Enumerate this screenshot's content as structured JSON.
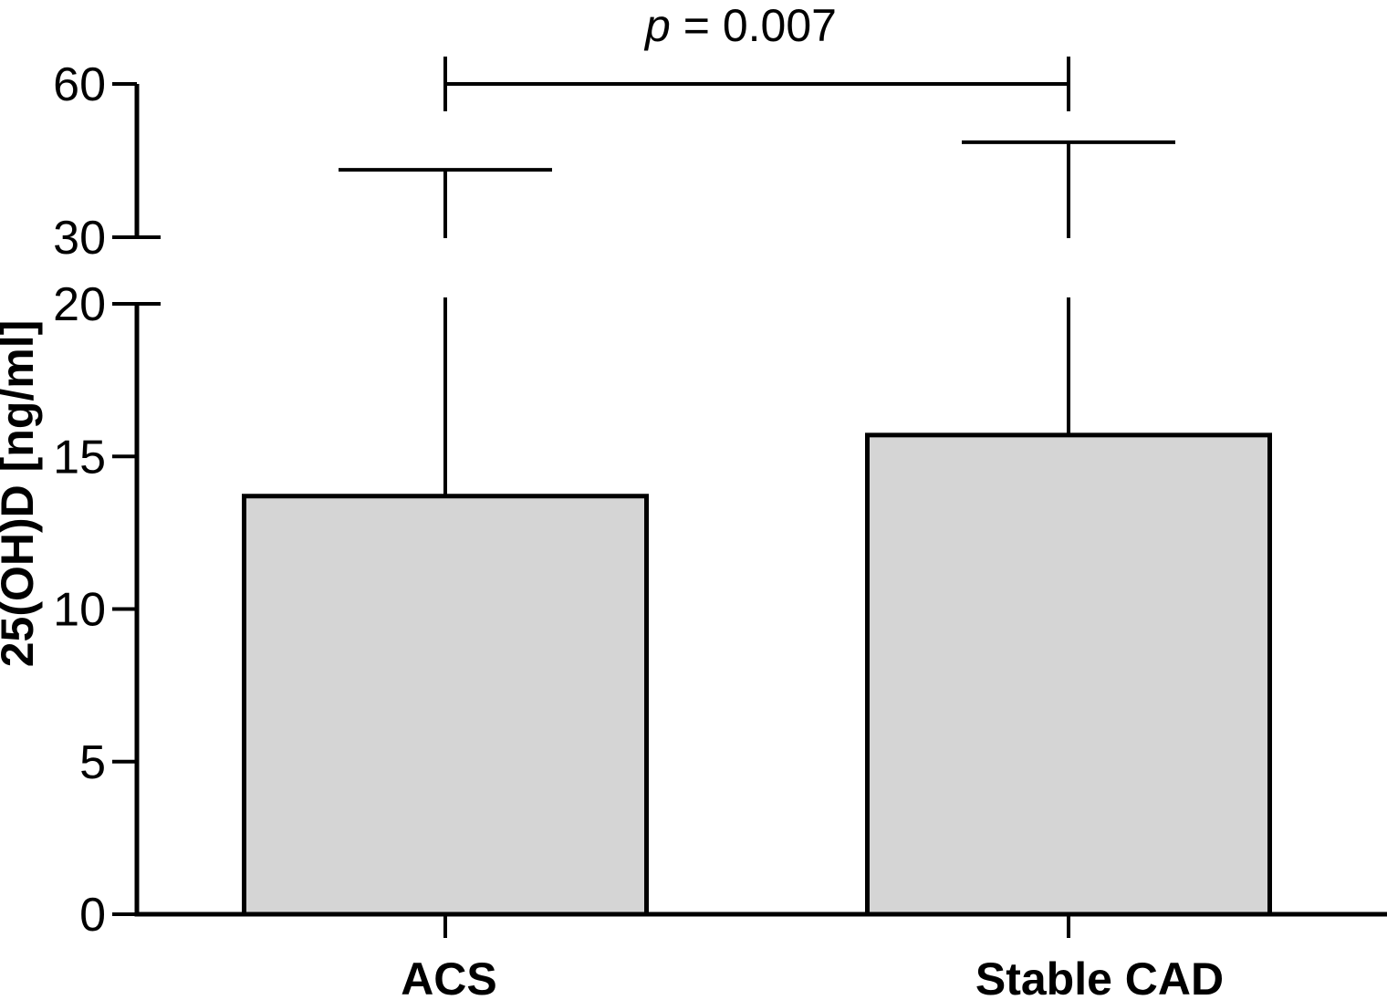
{
  "figure": {
    "background_color": "#ffffff",
    "ink_color": "#000000",
    "bar_fill_color": "#d5d5d5"
  },
  "chart_data": {
    "type": "bar",
    "title": "",
    "xlabel": "",
    "ylabel": "25(OH)D [ng/ml]",
    "categories": [
      "ACS",
      "Stable CAD"
    ],
    "values": [
      13.7,
      15.7
    ],
    "error_bars": {
      "direction": "upper",
      "tops": [
        43.2,
        48.6
      ]
    },
    "y_axis": {
      "lower_ticks": [
        0,
        5,
        10,
        15,
        20
      ],
      "upper_ticks": [
        30,
        60
      ],
      "lower_range": [
        0,
        20
      ],
      "upper_range": [
        30,
        60
      ],
      "break_between": [
        20,
        30
      ]
    },
    "annotation": {
      "text": "p = 0.007",
      "variable": "p",
      "rest": " = 0.007",
      "between": [
        "ACS",
        "Stable CAD"
      ]
    },
    "grid": false,
    "legend": null
  }
}
